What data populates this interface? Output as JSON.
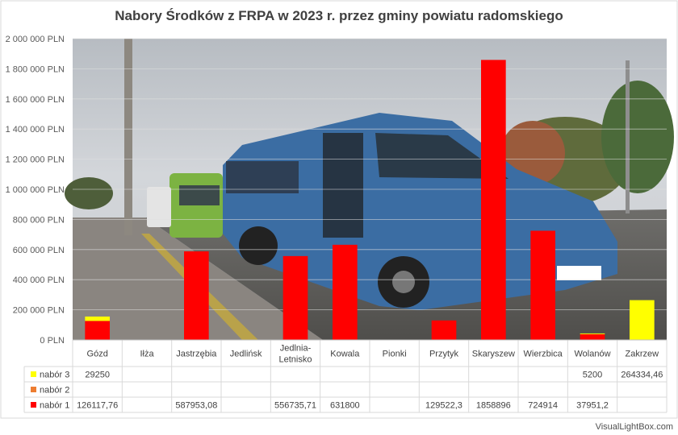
{
  "chart_data": {
    "type": "bar",
    "title": "Nabory Środków z FRPA w 2023 r. przez gminy powiatu radomskiego",
    "categories": [
      "Gózd",
      "Iłża",
      "Jastrzębia",
      "Jedlińsk",
      "Jedlnia-Letnisko",
      "Kowala",
      "Pionki",
      "Przytyk",
      "Skaryszew",
      "Wierzbica",
      "Wolanów",
      "Zakrzew"
    ],
    "category_lines": [
      [
        "Gózd"
      ],
      [
        "Iłża"
      ],
      [
        "Jastrzębia"
      ],
      [
        "Jedlińsk"
      ],
      [
        "Jedlnia-",
        "Letnisko"
      ],
      [
        "Kowala"
      ],
      [
        "Pionki"
      ],
      [
        "Przytyk"
      ],
      [
        "Skaryszew"
      ],
      [
        "Wierzbica"
      ],
      [
        "Wolanów"
      ],
      [
        "Zakrzew"
      ]
    ],
    "stacked": true,
    "ylim": [
      0,
      2000000
    ],
    "yticks": [
      0,
      200000,
      400000,
      600000,
      800000,
      1000000,
      1200000,
      1400000,
      1600000,
      1800000,
      2000000
    ],
    "ytick_labels": [
      "0 PLN",
      "200 000 PLN",
      "400 000 PLN",
      "600 000 PLN",
      "800 000 PLN",
      "1 000 000 PLN",
      "1 200 000 PLN",
      "1 400 000 PLN",
      "1 600 000 PLN",
      "1 800 000 PLN",
      "2 000 000 PLN"
    ],
    "series": [
      {
        "name": "nabór 1",
        "color": "#ff0000",
        "values": [
          126117.76,
          null,
          587953.08,
          null,
          556735.71,
          631800,
          null,
          129522.3,
          1858896,
          724914,
          37951.2,
          null
        ],
        "labels": [
          "126117,76",
          "",
          "587953,08",
          "",
          "556735,71",
          "631800",
          "",
          "129522,3",
          "1858896",
          "724914",
          "37951,2",
          ""
        ]
      },
      {
        "name": "nabór 2",
        "color": "#ed7d31",
        "values": [
          null,
          null,
          null,
          null,
          null,
          null,
          null,
          null,
          null,
          null,
          null,
          null
        ],
        "labels": [
          "",
          "",
          "",
          "",
          "",
          "",
          "",
          "",
          "",
          "",
          "",
          ""
        ]
      },
      {
        "name": "nabór 3",
        "color": "#ffff00",
        "values": [
          29250,
          null,
          null,
          null,
          null,
          null,
          null,
          null,
          null,
          null,
          5200,
          264334.46
        ],
        "labels": [
          "29250",
          "",
          "",
          "",
          "",
          "",
          "",
          "",
          "",
          "",
          "5200",
          "264334,46"
        ]
      }
    ],
    "data_table": true,
    "grid": true
  },
  "watermark": "VisualLightBox.com"
}
